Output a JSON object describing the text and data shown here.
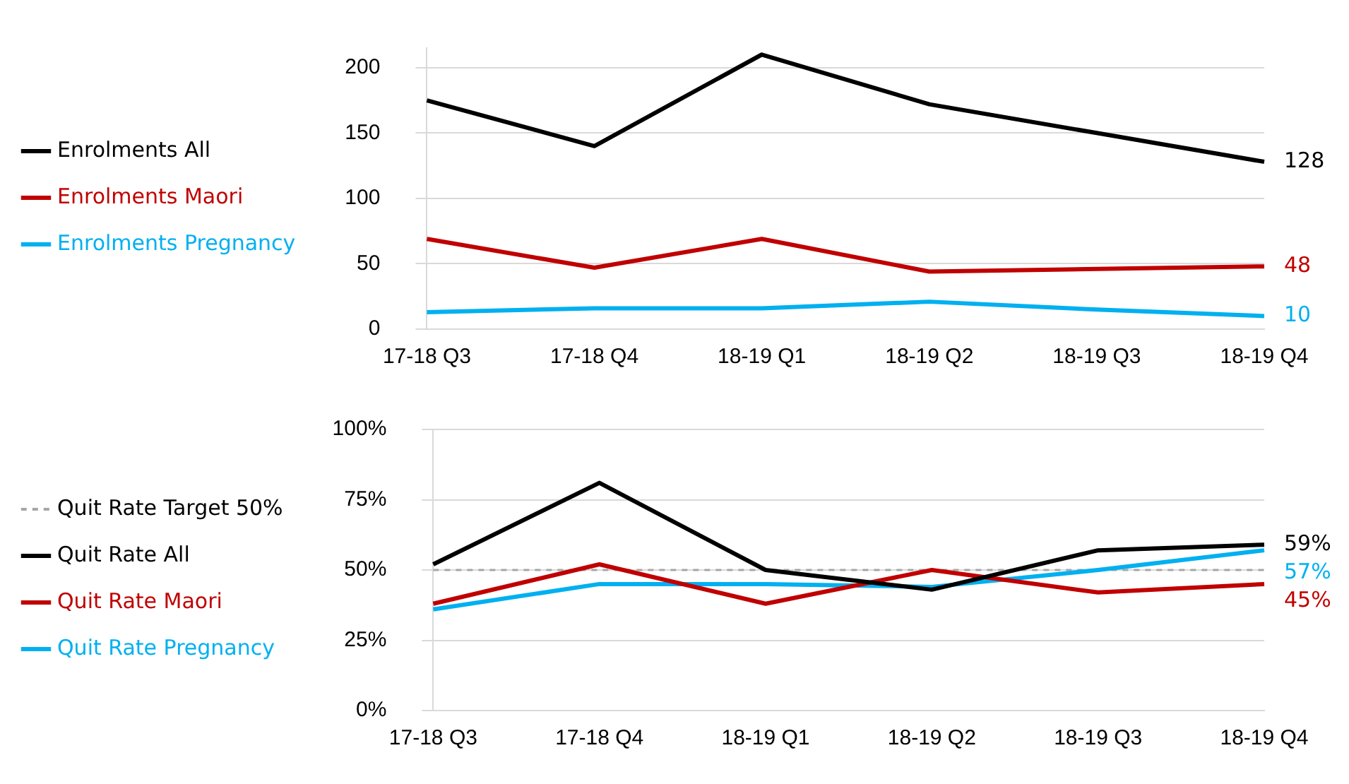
{
  "chart_data": [
    {
      "type": "line",
      "categories": [
        "17-18 Q3",
        "17-18 Q4",
        "18-19 Q1",
        "18-19 Q2",
        "18-19 Q3",
        "18-19 Q4"
      ],
      "series": [
        {
          "name": "Enrolments All",
          "color": "#000000",
          "values": [
            175,
            140,
            210,
            172,
            150,
            128
          ],
          "value_labels": [
            null,
            null,
            null,
            null,
            null,
            "128"
          ]
        },
        {
          "name": "Enrolments Maori",
          "color": "#c00000",
          "values": [
            69,
            47,
            69,
            44,
            46,
            48
          ],
          "value_labels": [
            null,
            null,
            null,
            null,
            null,
            "48"
          ]
        },
        {
          "name": "Enrolments Pregnancy",
          "color": "#00b0f0",
          "values": [
            13,
            16,
            16,
            21,
            15,
            10
          ],
          "value_labels": [
            null,
            null,
            null,
            null,
            null,
            "10"
          ]
        }
      ],
      "ylim": [
        0,
        215
      ],
      "yticks": [
        0,
        50,
        100,
        150,
        200
      ],
      "grid": "y",
      "legend": "left",
      "marker": "none",
      "line_style": "solid"
    },
    {
      "type": "line",
      "categories": [
        "17-18 Q3",
        "17-18 Q4",
        "18-19 Q1",
        "18-19 Q2",
        "18-19 Q3",
        "18-19 Q4"
      ],
      "series": [
        {
          "name": "Quit Rate All",
          "color": "#000000",
          "values": [
            52,
            81,
            50,
            43,
            57,
            59
          ],
          "value_labels": [
            null,
            null,
            null,
            null,
            null,
            "59%"
          ]
        },
        {
          "name": "Quit Rate Maori",
          "color": "#c00000",
          "values": [
            38,
            52,
            38,
            50,
            42,
            45
          ],
          "value_labels": [
            null,
            null,
            null,
            null,
            null,
            "45%"
          ]
        },
        {
          "name": "Quit Rate Pregnancy",
          "color": "#00b0f0",
          "values": [
            36,
            45,
            45,
            44,
            50,
            57
          ],
          "value_labels": [
            null,
            null,
            null,
            null,
            null,
            "57%"
          ]
        }
      ],
      "ref_lines": [
        {
          "axis": "y",
          "value": 50,
          "label": "Quit Rate Target 50%",
          "color": "#a6a6a6",
          "line_style": "dashed"
        }
      ],
      "ylim": [
        0,
        100
      ],
      "yticks": [
        {
          "value": 0,
          "label": "0%"
        },
        {
          "value": 25,
          "label": "25%"
        },
        {
          "value": 50,
          "label": "50%"
        },
        {
          "value": 75,
          "label": "75%"
        },
        {
          "value": 100,
          "label": "100%"
        }
      ],
      "grid": "y",
      "legend": "left",
      "marker": "none",
      "line_style": "solid"
    }
  ]
}
